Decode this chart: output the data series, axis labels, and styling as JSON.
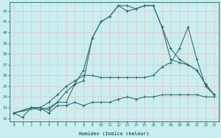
{
  "xlabel": "Humidex (Indice chaleur)",
  "ylabel": "",
  "bg_color": "#c8eef0",
  "line_color": "#2d6b6b",
  "grid_color": "#e8c8c8",
  "xlim": [
    -0.5,
    23.5
  ],
  "ylim": [
    31.7,
    42.8
  ],
  "yticks": [
    32,
    33,
    34,
    35,
    36,
    37,
    38,
    39,
    40,
    41,
    42
  ],
  "xticks": [
    0,
    1,
    2,
    3,
    4,
    5,
    6,
    7,
    8,
    9,
    10,
    11,
    12,
    13,
    14,
    15,
    16,
    17,
    18,
    19,
    20,
    21,
    22,
    23
  ],
  "lines": [
    {
      "x": [
        0,
        1,
        2,
        3,
        4,
        5,
        6,
        7,
        8,
        9,
        10,
        11,
        12,
        13,
        14,
        15,
        16,
        17,
        18,
        19,
        20,
        21,
        22,
        23
      ],
      "y": [
        32.5,
        32.1,
        33.0,
        33.0,
        32.5,
        33.2,
        33.2,
        33.5,
        33.2,
        33.5,
        33.5,
        33.5,
        33.8,
        34.0,
        33.8,
        34.0,
        34.0,
        34.2,
        34.2,
        34.2,
        34.2,
        34.2,
        34.0,
        34.0
      ]
    },
    {
      "x": [
        0,
        2,
        3,
        4,
        5,
        6,
        7,
        8,
        9,
        10,
        11,
        12,
        13,
        14,
        15,
        16,
        17,
        18,
        19,
        20,
        21,
        22,
        23
      ],
      "y": [
        32.5,
        33.0,
        33.0,
        33.5,
        34.2,
        35.0,
        35.5,
        36.0,
        36.0,
        35.8,
        35.8,
        35.8,
        35.8,
        35.8,
        35.8,
        36.0,
        36.8,
        37.2,
        38.5,
        40.5,
        37.5,
        35.0,
        34.2
      ]
    },
    {
      "x": [
        0,
        2,
        3,
        4,
        5,
        6,
        7,
        8,
        9,
        10,
        11,
        12,
        13,
        14,
        15,
        16,
        17,
        18,
        19,
        20,
        21,
        22,
        23
      ],
      "y": [
        32.5,
        33.0,
        32.8,
        33.0,
        33.5,
        34.5,
        35.2,
        36.5,
        39.5,
        41.0,
        41.5,
        42.5,
        42.0,
        42.2,
        42.5,
        42.5,
        40.5,
        38.5,
        37.5,
        37.0,
        36.5,
        35.2,
        34.2
      ]
    },
    {
      "x": [
        0,
        3,
        4,
        5,
        6,
        7,
        8,
        9,
        10,
        11,
        12,
        13,
        14,
        15,
        16,
        17,
        18,
        19,
        20,
        21,
        22,
        23
      ],
      "y": [
        32.5,
        33.0,
        32.8,
        33.5,
        33.5,
        35.2,
        35.5,
        39.5,
        41.0,
        41.5,
        42.5,
        42.5,
        42.2,
        42.5,
        42.5,
        40.5,
        37.5,
        37.2,
        37.0,
        36.5,
        35.2,
        34.2
      ]
    }
  ]
}
